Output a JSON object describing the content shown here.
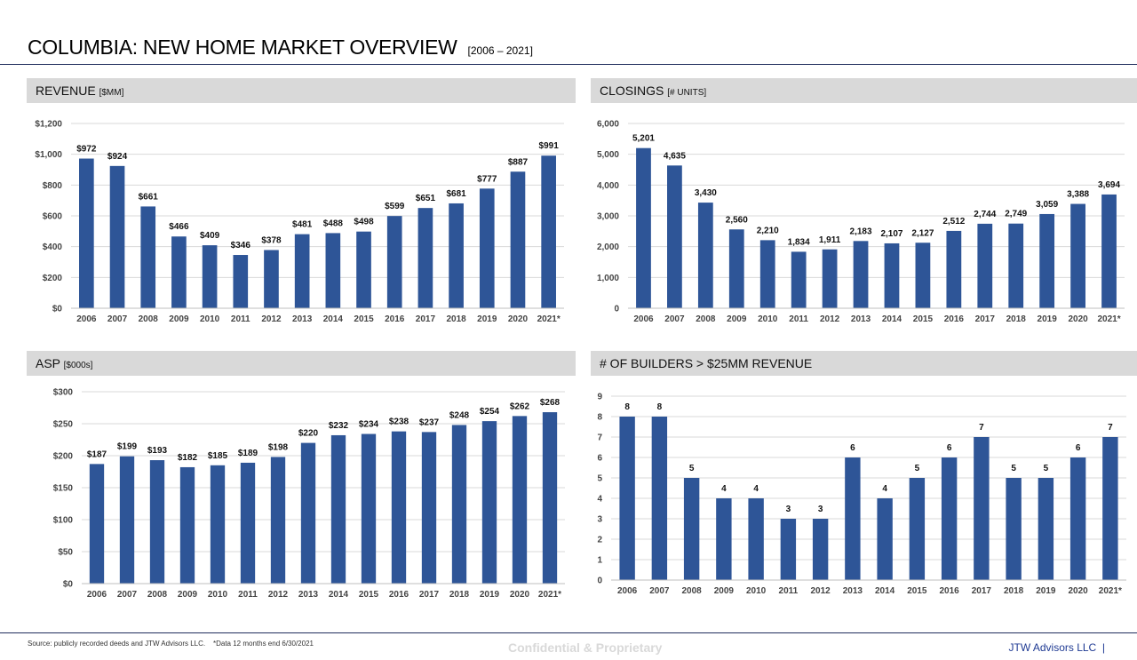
{
  "header": {
    "title": "COLUMBIA: NEW HOME MARKET OVERVIEW",
    "subtitle": "[2006 – 2021]"
  },
  "panels": {
    "revenue": {
      "label": "REVENUE",
      "unit": "[$MM]"
    },
    "closings": {
      "label": "CLOSINGS",
      "unit": "[# UNITS]"
    },
    "asp": {
      "label": "ASP",
      "unit": "[$000s]"
    },
    "builders": {
      "label": "# OF BUILDERS > $25MM REVENUE",
      "unit": ""
    }
  },
  "colors": {
    "bar": "#2e5597",
    "grid": "#d9d9d9",
    "panel_header": "#d9d9d9",
    "rule": "#1f2d5c"
  },
  "chart_data": [
    {
      "id": "revenue",
      "type": "bar",
      "categories": [
        "2006",
        "2007",
        "2008",
        "2009",
        "2010",
        "2011",
        "2012",
        "2013",
        "2014",
        "2015",
        "2016",
        "2017",
        "2018",
        "2019",
        "2020",
        "2021*"
      ],
      "values": [
        972,
        924,
        661,
        466,
        409,
        346,
        378,
        481,
        488,
        498,
        599,
        651,
        681,
        777,
        887,
        991
      ],
      "data_labels": [
        "$972",
        "$924",
        "$661",
        "$466",
        "$409",
        "$346",
        "$378",
        "$481",
        "$488",
        "$498",
        "$599",
        "$651",
        "$681",
        "$777",
        "$887",
        "$991"
      ],
      "ylim": [
        0,
        1200
      ],
      "ticks": [
        0,
        200,
        400,
        600,
        800,
        1000,
        1200
      ],
      "tick_labels": [
        "$0",
        "$200",
        "$400",
        "$600",
        "$800",
        "$1,000",
        "$1,200"
      ],
      "grid": true
    },
    {
      "id": "closings",
      "type": "bar",
      "categories": [
        "2006",
        "2007",
        "2008",
        "2009",
        "2010",
        "2011",
        "2012",
        "2013",
        "2014",
        "2015",
        "2016",
        "2017",
        "2018",
        "2019",
        "2020",
        "2021*"
      ],
      "values": [
        5201,
        4635,
        3430,
        2560,
        2210,
        1834,
        1911,
        2183,
        2107,
        2127,
        2512,
        2744,
        2749,
        3059,
        3388,
        3694
      ],
      "data_labels": [
        "5,201",
        "4,635",
        "3,430",
        "2,560",
        "2,210",
        "1,834",
        "1,911",
        "2,183",
        "2,107",
        "2,127",
        "2,512",
        "2,744",
        "2,749",
        "3,059",
        "3,388",
        "3,694"
      ],
      "ylim": [
        0,
        6000
      ],
      "ticks": [
        0,
        1000,
        2000,
        3000,
        4000,
        5000,
        6000
      ],
      "tick_labels": [
        "0",
        "1,000",
        "2,000",
        "3,000",
        "4,000",
        "5,000",
        "6,000"
      ],
      "grid": true
    },
    {
      "id": "asp",
      "type": "bar",
      "categories": [
        "2006",
        "2007",
        "2008",
        "2009",
        "2010",
        "2011",
        "2012",
        "2013",
        "2014",
        "2015",
        "2016",
        "2017",
        "2018",
        "2019",
        "2020",
        "2021*"
      ],
      "values": [
        187,
        199,
        193,
        182,
        185,
        189,
        198,
        220,
        232,
        234,
        238,
        237,
        248,
        254,
        262,
        268
      ],
      "data_labels": [
        "$187",
        "$199",
        "$193",
        "$182",
        "$185",
        "$189",
        "$198",
        "$220",
        "$232",
        "$234",
        "$238",
        "$237",
        "$248",
        "$254",
        "$262",
        "$268"
      ],
      "ylim": [
        0,
        300
      ],
      "ticks": [
        0,
        50,
        100,
        150,
        200,
        250,
        300
      ],
      "tick_labels": [
        "$0",
        "$50",
        "$100",
        "$150",
        "$200",
        "$250",
        "$300"
      ],
      "grid": true
    },
    {
      "id": "builders",
      "type": "bar",
      "categories": [
        "2006",
        "2007",
        "2008",
        "2009",
        "2010",
        "2011",
        "2012",
        "2013",
        "2014",
        "2015",
        "2016",
        "2017",
        "2018",
        "2019",
        "2020",
        "2021*"
      ],
      "values": [
        8,
        8,
        5,
        4,
        4,
        3,
        3,
        6,
        4,
        5,
        6,
        7,
        5,
        5,
        6,
        7
      ],
      "data_labels": [
        "8",
        "8",
        "5",
        "4",
        "4",
        "3",
        "3",
        "6",
        "4",
        "5",
        "6",
        "7",
        "5",
        "5",
        "6",
        "7"
      ],
      "ylim": [
        0,
        9
      ],
      "ticks": [
        0,
        1,
        2,
        3,
        4,
        5,
        6,
        7,
        8,
        9
      ],
      "tick_labels": [
        "0",
        "1",
        "2",
        "3",
        "4",
        "5",
        "6",
        "7",
        "8",
        "9"
      ],
      "grid": true
    }
  ],
  "footer": {
    "source": "Source: publicly recorded deeds and JTW Advisors LLC.    *Data 12 months end 6/30/2021",
    "confidential": "Confidential & Proprietary",
    "brand": "JTW Advisors LLC  |"
  }
}
